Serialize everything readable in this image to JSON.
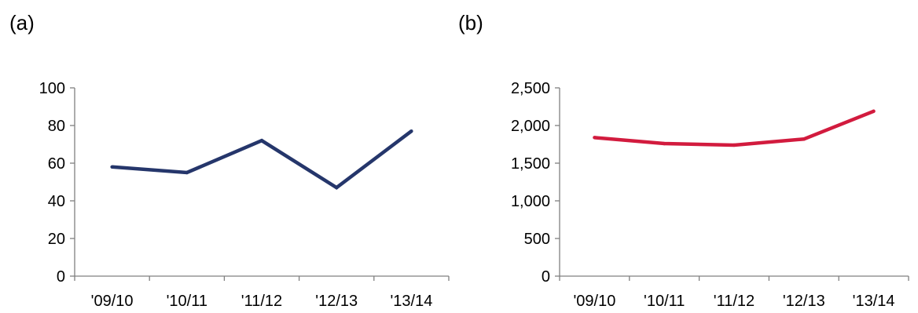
{
  "panels": [
    {
      "label": "(a)"
    },
    {
      "label": "(b)"
    }
  ],
  "chart_data": [
    {
      "type": "line",
      "title": "",
      "xlabel": "",
      "ylabel": "",
      "categories": [
        "'09/10",
        "'10/11",
        "'11/12",
        "'12/13",
        "'13/14"
      ],
      "series": [
        {
          "values": [
            58,
            55,
            72,
            47,
            77
          ],
          "color": "#25366b"
        }
      ],
      "ylim": [
        0,
        100
      ],
      "yticks": [
        0,
        20,
        40,
        60,
        80,
        100
      ],
      "ytick_labels": [
        "0",
        "20",
        "40",
        "60",
        "80",
        "100"
      ],
      "grid": false,
      "legend": "none"
    },
    {
      "type": "line",
      "title": "",
      "xlabel": "",
      "ylabel": "",
      "categories": [
        "'09/10",
        "'10/11",
        "'11/12",
        "'12/13",
        "'13/14"
      ],
      "series": [
        {
          "values": [
            1840,
            1760,
            1740,
            1820,
            2190
          ],
          "color": "#d21b3e"
        }
      ],
      "ylim": [
        0,
        2500
      ],
      "yticks": [
        0,
        500,
        1000,
        1500,
        2000,
        2500
      ],
      "ytick_labels": [
        "0",
        "500",
        "1,000",
        "1,500",
        "2,000",
        "2,500"
      ],
      "grid": false,
      "legend": "none"
    }
  ]
}
